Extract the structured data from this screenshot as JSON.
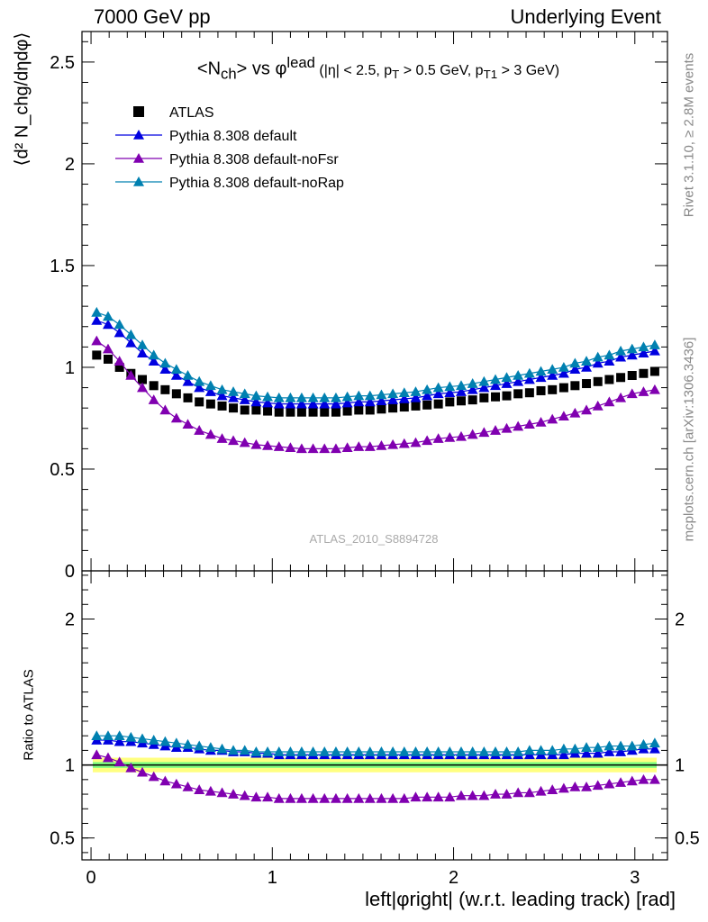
{
  "header": {
    "left": "7000 GeV pp",
    "right": "Underlying Event"
  },
  "side": {
    "rivet": "Rivet 3.1.10, ≥ 2.8M events",
    "mcplots": "mcplots.cern.ch [arXiv:1306.3436]"
  },
  "watermark": "ATLAS_2010_S8894728",
  "plot_title": {
    "main": "<N",
    "main_sub": "ch",
    "main_mid": "> vs φ",
    "main_sup": "lead",
    "cuts": " (|η| < 2.5, p",
    "cuts_sub1": "T",
    "cuts_mid": " > 0.5 GeV, p",
    "cuts_sub2": "T1",
    "cuts_end": " > 3 GeV)"
  },
  "colors": {
    "atlas": "#000000",
    "default": "#0000e0",
    "noFsr": "#8000b0",
    "noRap": "#0080b0",
    "band_inner": "#80ff80",
    "band_outer": "#ffff80"
  },
  "chart_data": [
    {
      "type": "scatter",
      "panel": "main",
      "ylabel": "⟨d² N_chg/dηdφ⟩",
      "ylim": [
        0,
        2.65
      ],
      "xlim": [
        -0.05,
        3.18
      ],
      "yticks": [
        0,
        0.5,
        1,
        1.5,
        2,
        2.5
      ],
      "ytick_labels": [
        "0",
        "0.5",
        "1",
        "1.5",
        "2",
        "2.5"
      ],
      "legend": {
        "placement": "top-left",
        "entries": [
          "ATLAS",
          "Pythia 8.308 default",
          "Pythia 8.308 default-noFsr",
          "Pythia 8.308 default-noRap"
        ]
      },
      "x": [
        0.031,
        0.094,
        0.157,
        0.22,
        0.283,
        0.346,
        0.409,
        0.471,
        0.534,
        0.597,
        0.66,
        0.723,
        0.785,
        0.848,
        0.911,
        0.974,
        1.037,
        1.1,
        1.162,
        1.225,
        1.288,
        1.351,
        1.414,
        1.477,
        1.539,
        1.602,
        1.665,
        1.728,
        1.791,
        1.854,
        1.916,
        1.979,
        2.042,
        2.105,
        2.168,
        2.231,
        2.293,
        2.356,
        2.419,
        2.482,
        2.545,
        2.608,
        2.67,
        2.733,
        2.796,
        2.859,
        2.922,
        2.985,
        3.048,
        3.11
      ],
      "series": [
        {
          "name": "ATLAS",
          "marker": "square",
          "values": [
            1.06,
            1.04,
            1.0,
            0.97,
            0.94,
            0.91,
            0.89,
            0.87,
            0.85,
            0.83,
            0.82,
            0.81,
            0.8,
            0.79,
            0.79,
            0.785,
            0.78,
            0.78,
            0.78,
            0.78,
            0.78,
            0.78,
            0.785,
            0.79,
            0.79,
            0.795,
            0.8,
            0.805,
            0.81,
            0.815,
            0.82,
            0.83,
            0.835,
            0.84,
            0.85,
            0.855,
            0.86,
            0.87,
            0.875,
            0.885,
            0.89,
            0.9,
            0.91,
            0.92,
            0.93,
            0.94,
            0.95,
            0.96,
            0.97,
            0.98
          ]
        },
        {
          "name": "Pythia 8.308 default",
          "marker": "triangle",
          "values": [
            1.23,
            1.21,
            1.17,
            1.12,
            1.07,
            1.03,
            0.99,
            0.96,
            0.93,
            0.9,
            0.88,
            0.86,
            0.85,
            0.84,
            0.83,
            0.825,
            0.82,
            0.82,
            0.82,
            0.82,
            0.82,
            0.82,
            0.825,
            0.83,
            0.83,
            0.835,
            0.84,
            0.845,
            0.85,
            0.86,
            0.87,
            0.875,
            0.88,
            0.89,
            0.9,
            0.91,
            0.92,
            0.93,
            0.94,
            0.95,
            0.96,
            0.97,
            0.99,
            1.0,
            1.02,
            1.03,
            1.05,
            1.06,
            1.07,
            1.08
          ]
        },
        {
          "name": "Pythia 8.308 default-noFsr",
          "marker": "triangle",
          "values": [
            1.13,
            1.09,
            1.03,
            0.96,
            0.9,
            0.84,
            0.79,
            0.75,
            0.72,
            0.69,
            0.67,
            0.65,
            0.64,
            0.63,
            0.62,
            0.615,
            0.61,
            0.605,
            0.6,
            0.6,
            0.6,
            0.6,
            0.605,
            0.61,
            0.61,
            0.615,
            0.62,
            0.625,
            0.63,
            0.64,
            0.65,
            0.655,
            0.66,
            0.67,
            0.68,
            0.69,
            0.7,
            0.71,
            0.72,
            0.73,
            0.745,
            0.76,
            0.775,
            0.79,
            0.81,
            0.83,
            0.85,
            0.87,
            0.88,
            0.89
          ]
        },
        {
          "name": "Pythia 8.308 default-noRap",
          "marker": "triangle",
          "values": [
            1.27,
            1.25,
            1.21,
            1.16,
            1.11,
            1.06,
            1.02,
            0.99,
            0.96,
            0.93,
            0.91,
            0.89,
            0.88,
            0.87,
            0.86,
            0.855,
            0.85,
            0.85,
            0.85,
            0.85,
            0.85,
            0.85,
            0.855,
            0.86,
            0.86,
            0.865,
            0.87,
            0.875,
            0.88,
            0.89,
            0.9,
            0.905,
            0.91,
            0.92,
            0.93,
            0.94,
            0.95,
            0.96,
            0.97,
            0.98,
            0.99,
            1.0,
            1.02,
            1.03,
            1.05,
            1.06,
            1.08,
            1.09,
            1.1,
            1.11
          ]
        }
      ]
    },
    {
      "type": "scatter",
      "panel": "ratio",
      "ylabel": "Ratio to ATLAS",
      "xlabel": "left|φright| (w.r.t. leading track) [rad]",
      "ylim": [
        0.35,
        2.33
      ],
      "xlim": [
        -0.05,
        3.18
      ],
      "yticks": [
        0.5,
        1,
        2
      ],
      "ytick_labels": [
        "0.5",
        "1",
        "2"
      ],
      "xticks": [
        0,
        1,
        2,
        3
      ],
      "xtick_labels": [
        "0",
        "1",
        "2",
        "3"
      ],
      "band": {
        "inner": [
          0.98,
          1.02
        ],
        "outer": [
          0.95,
          1.05
        ]
      },
      "series": [
        {
          "name": "Pythia 8.308 default",
          "values": [
            1.17,
            1.17,
            1.16,
            1.16,
            1.15,
            1.14,
            1.13,
            1.12,
            1.12,
            1.11,
            1.1,
            1.1,
            1.09,
            1.09,
            1.08,
            1.08,
            1.07,
            1.07,
            1.07,
            1.07,
            1.07,
            1.07,
            1.07,
            1.07,
            1.07,
            1.07,
            1.07,
            1.07,
            1.07,
            1.07,
            1.07,
            1.07,
            1.07,
            1.07,
            1.07,
            1.07,
            1.07,
            1.07,
            1.07,
            1.07,
            1.07,
            1.07,
            1.08,
            1.08,
            1.08,
            1.09,
            1.09,
            1.1,
            1.11,
            1.11
          ]
        },
        {
          "name": "Pythia 8.308 default-noFsr",
          "values": [
            1.07,
            1.05,
            1.02,
            0.98,
            0.95,
            0.92,
            0.89,
            0.87,
            0.85,
            0.83,
            0.82,
            0.81,
            0.8,
            0.79,
            0.78,
            0.78,
            0.77,
            0.77,
            0.77,
            0.77,
            0.77,
            0.77,
            0.77,
            0.77,
            0.77,
            0.77,
            0.77,
            0.77,
            0.78,
            0.78,
            0.78,
            0.78,
            0.79,
            0.79,
            0.79,
            0.8,
            0.8,
            0.81,
            0.81,
            0.82,
            0.83,
            0.84,
            0.85,
            0.85,
            0.86,
            0.87,
            0.88,
            0.89,
            0.9,
            0.9
          ]
        },
        {
          "name": "Pythia 8.308 default-noRap",
          "values": [
            1.2,
            1.2,
            1.2,
            1.19,
            1.18,
            1.17,
            1.16,
            1.15,
            1.14,
            1.13,
            1.12,
            1.11,
            1.1,
            1.1,
            1.09,
            1.09,
            1.09,
            1.09,
            1.09,
            1.09,
            1.09,
            1.09,
            1.09,
            1.09,
            1.09,
            1.09,
            1.09,
            1.09,
            1.09,
            1.09,
            1.09,
            1.09,
            1.09,
            1.09,
            1.09,
            1.09,
            1.09,
            1.09,
            1.1,
            1.1,
            1.1,
            1.11,
            1.11,
            1.12,
            1.12,
            1.13,
            1.13,
            1.13,
            1.14,
            1.15
          ]
        }
      ]
    }
  ]
}
